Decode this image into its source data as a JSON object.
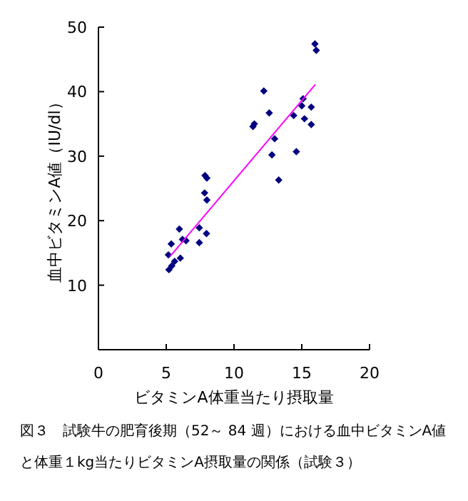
{
  "chart_data": {
    "type": "scatter",
    "xlabel": "ビタミンA体重当たり摂取量",
    "ylabel": "血中ビタミンA値（IU/dl）",
    "annotations": [
      "図３　試験牛の肥育後期（52～ 84 週）における血中ビタミンA値と体重１kg当たりビタミンA摂取量の関係（試験３）"
    ],
    "xlim": [
      0,
      20
    ],
    "ylim": [
      0,
      50
    ],
    "xticks": [
      0,
      5,
      10,
      15,
      20
    ],
    "yticks": [
      10,
      20,
      30,
      40,
      50
    ],
    "series": [
      {
        "marker": "diamond",
        "color": "#000080",
        "x": [
          15.97,
          16.07,
          12.2,
          15.1,
          15.0,
          15.7,
          12.6,
          14.4,
          15.2,
          15.7,
          11.5,
          11.4,
          13.0,
          12.8,
          14.6,
          13.3,
          7.86,
          8.0,
          7.83,
          8.0,
          5.97,
          7.44,
          7.97,
          5.37,
          6.2,
          6.46,
          7.44,
          5.16,
          6.04,
          5.62,
          5.41,
          5.2
        ],
        "values": [
          47.4,
          46.4,
          40.1,
          38.9,
          37.8,
          37.6,
          36.7,
          36.3,
          35.8,
          34.9,
          35.0,
          34.6,
          32.7,
          30.2,
          30.7,
          26.3,
          27.0,
          26.6,
          24.3,
          23.2,
          18.7,
          18.9,
          18.0,
          16.4,
          17.1,
          16.9,
          16.6,
          14.7,
          14.2,
          13.7,
          13.0,
          12.4
        ]
      },
      {
        "type": "line",
        "color": "#ff00ff",
        "x": [
          5.3,
          16.0
        ],
        "values": [
          14.5,
          41.1
        ]
      }
    ]
  }
}
